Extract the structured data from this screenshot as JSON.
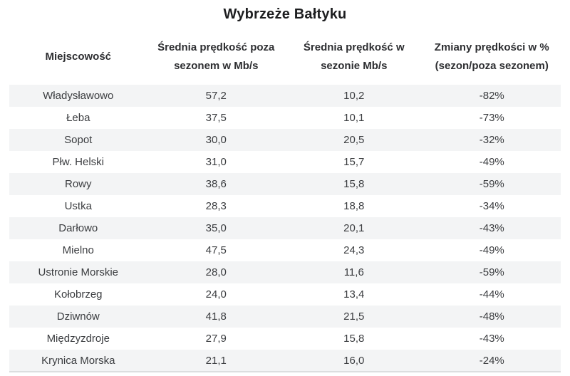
{
  "title": "Wybrzeże Bałtyku",
  "table": {
    "columns": [
      "Miejscowość",
      "Średnia prędkość poza sezonem w Mb/s",
      "Średnia prędkość w sezonie Mb/s",
      "Zmiany prędkości w % (sezon/poza sezonem)"
    ],
    "rows": [
      {
        "name": "Władysławowo",
        "off_season": "57,2",
        "in_season": "10,2",
        "change": "-82%"
      },
      {
        "name": "Łeba",
        "off_season": "37,5",
        "in_season": "10,1",
        "change": "-73%"
      },
      {
        "name": "Sopot",
        "off_season": "30,0",
        "in_season": "20,5",
        "change": "-32%"
      },
      {
        "name": "Płw. Helski",
        "off_season": "31,0",
        "in_season": "15,7",
        "change": "-49%"
      },
      {
        "name": "Rowy",
        "off_season": "38,6",
        "in_season": "15,8",
        "change": "-59%"
      },
      {
        "name": "Ustka",
        "off_season": "28,3",
        "in_season": "18,8",
        "change": "-34%"
      },
      {
        "name": "Darłowo",
        "off_season": "35,0",
        "in_season": "20,1",
        "change": "-43%"
      },
      {
        "name": "Mielno",
        "off_season": "47,5",
        "in_season": "24,3",
        "change": "-49%"
      },
      {
        "name": "Ustronie Morskie",
        "off_season": "28,0",
        "in_season": "11,6",
        "change": "-59%"
      },
      {
        "name": "Kołobrzeg",
        "off_season": "24,0",
        "in_season": "13,4",
        "change": "-44%"
      },
      {
        "name": "Dziwnów",
        "off_season": "41,8",
        "in_season": "21,5",
        "change": "-48%"
      },
      {
        "name": "Międzyzdroje",
        "off_season": "27,9",
        "in_season": "15,8",
        "change": "-43%"
      },
      {
        "name": "Krynica Morska",
        "off_season": "21,1",
        "in_season": "16,0",
        "change": "-24%"
      }
    ]
  },
  "colors": {
    "stripe_bg": "#f3f4f5",
    "cell_text": "#3b3d40",
    "header_text": "#2e2f32",
    "title_text": "#1d1e20",
    "bottom_border": "#dcdedf"
  },
  "chart_data": {
    "type": "table",
    "title": "Wybrzeże Bałtyku",
    "columns": [
      "Miejscowość",
      "Średnia prędkość poza sezonem w Mb/s",
      "Średnia prędkość w sezonie Mb/s",
      "Zmiany prędkości w % (sezon/poza sezonem)"
    ],
    "categories": [
      "Władysławowo",
      "Łeba",
      "Sopot",
      "Płw. Helski",
      "Rowy",
      "Ustka",
      "Darłowo",
      "Mielno",
      "Ustronie Morskie",
      "Kołobrzeg",
      "Dziwnów",
      "Międzyzdroje",
      "Krynica Morska"
    ],
    "series": [
      {
        "name": "Średnia prędkość poza sezonem w Mb/s",
        "values": [
          57.2,
          37.5,
          30.0,
          31.0,
          38.6,
          28.3,
          35.0,
          47.5,
          28.0,
          24.0,
          41.8,
          27.9,
          21.1
        ]
      },
      {
        "name": "Średnia prędkość w sezonie Mb/s",
        "values": [
          10.2,
          10.1,
          20.5,
          15.7,
          15.8,
          18.8,
          20.1,
          24.3,
          11.6,
          13.4,
          21.5,
          15.8,
          16.0
        ]
      },
      {
        "name": "Zmiany prędkości w % (sezon/poza sezonem)",
        "values": [
          -82,
          -73,
          -32,
          -49,
          -59,
          -34,
          -43,
          -49,
          -59,
          -44,
          -48,
          -43,
          -24
        ]
      }
    ],
    "layout_hints": {
      "striped_rows": true,
      "first_data_row_shaded": true,
      "all_cells_centered": true
    }
  }
}
